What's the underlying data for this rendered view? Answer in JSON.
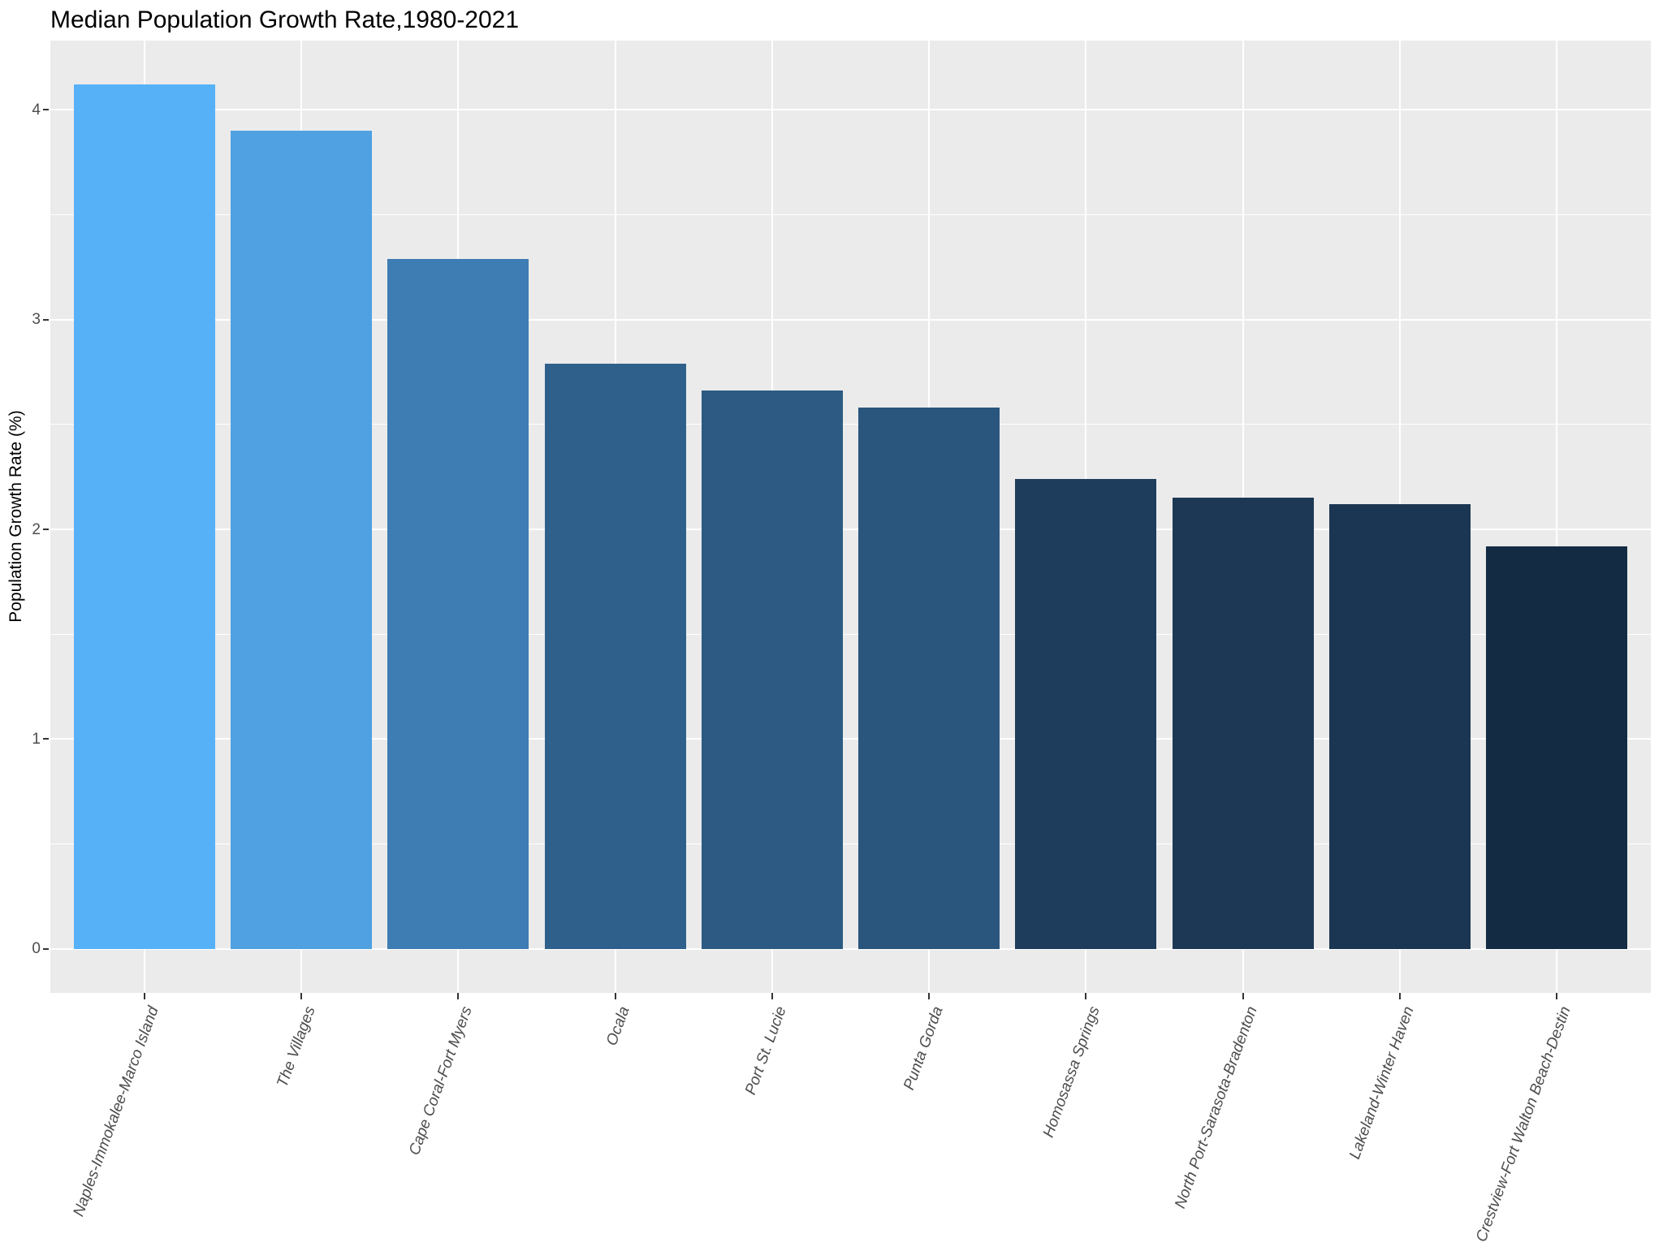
{
  "chart_data": {
    "type": "bar",
    "title": "Median Population Growth Rate,1980-2021",
    "xlabel": "",
    "ylabel": "Population Growth Rate (%)",
    "categories": [
      "Naples-Immokalee-Marco Island",
      "The Villages",
      "Cape Coral-Fort Myers",
      "Ocala",
      "Port St. Lucie",
      "Punta Gorda",
      "Homosassa Springs",
      "North Port-Sarasota-Bradenton",
      "Lakeland-Winter Haven",
      "Crestview-Fort Walton Beach-Destin"
    ],
    "values": [
      4.12,
      3.9,
      3.29,
      2.79,
      2.66,
      2.58,
      2.24,
      2.15,
      2.12,
      1.92
    ],
    "bar_colors": [
      "#56B1F7",
      "#4FA1E1",
      "#3E7CB4",
      "#2F608C",
      "#2C5A83",
      "#2A567E",
      "#1E3C5B",
      "#1C3854",
      "#1B3652",
      "#132B43"
    ],
    "color_gradient": {
      "low": "#132B43",
      "high": "#56B1F7"
    },
    "y_ticks": [
      0,
      1,
      2,
      3,
      4
    ],
    "y_tick_labels": [
      "0",
      "1",
      "2",
      "3",
      "4"
    ],
    "y_minor_ticks": [
      0.5,
      1.5,
      2.5,
      3.5
    ],
    "ylim": [
      -0.21,
      4.33
    ],
    "grid": "on",
    "legend": "none",
    "x_label_angle_deg": 70,
    "x_label_style": "italic",
    "panel_bg": "#EBEBEB",
    "grid_color": "#FFFFFF",
    "axis_text_color": "#4D4D4D",
    "tick_mark_color": "#333333",
    "title_color": "#000000"
  }
}
